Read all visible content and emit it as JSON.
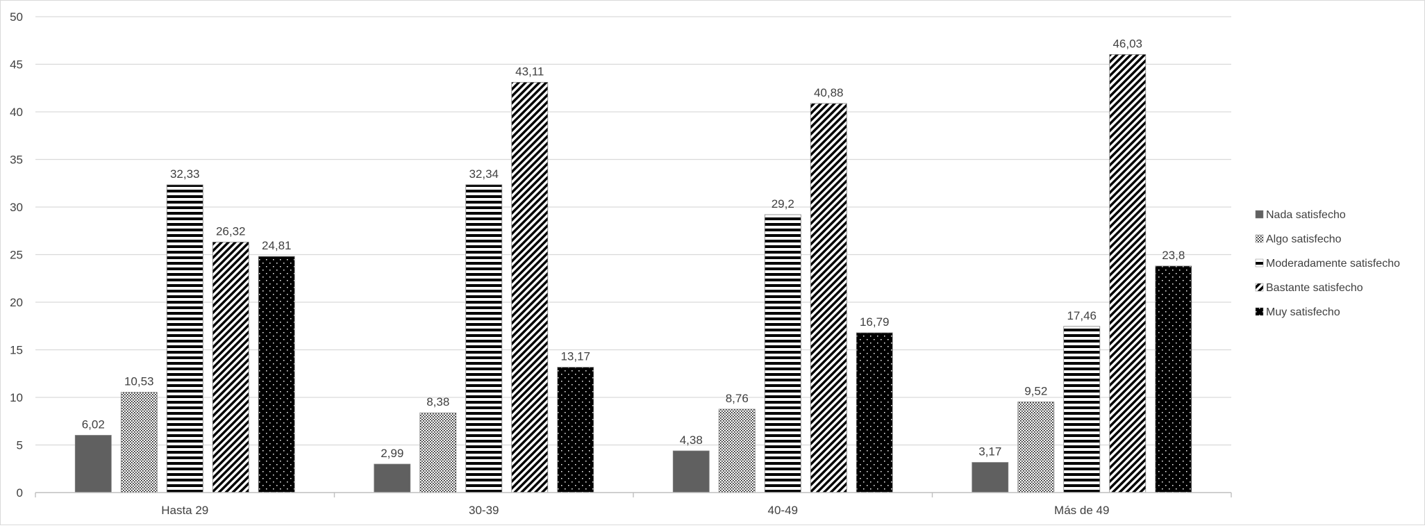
{
  "chart_data": {
    "type": "bar",
    "title": "",
    "xlabel": "",
    "ylabel": "",
    "ylim": [
      0,
      50
    ],
    "yticks": [
      0,
      5,
      10,
      15,
      20,
      25,
      30,
      35,
      40,
      45,
      50
    ],
    "grid": true,
    "legend_position": "right",
    "categories": [
      "Hasta 29",
      "30-39",
      "40-49",
      "Más de 49"
    ],
    "series": [
      {
        "name": "Nada satisfecho",
        "pattern": "solid-gray",
        "values": [
          6.02,
          2.99,
          4.38,
          3.17
        ],
        "labels": [
          "6,02",
          "2,99",
          "4,38",
          "3,17"
        ]
      },
      {
        "name": "Algo satisfecho",
        "pattern": "fine-dots",
        "values": [
          10.53,
          8.38,
          8.76,
          9.52
        ],
        "labels": [
          "10,53",
          "8,38",
          "8,76",
          "9,52"
        ]
      },
      {
        "name": "Moderadamente satisfecho",
        "pattern": "horizontal-stripes",
        "values": [
          32.33,
          32.34,
          29.2,
          17.46
        ],
        "labels": [
          "32,33",
          "32,34",
          "29,2",
          "17,46"
        ]
      },
      {
        "name": "Bastante satisfecho",
        "pattern": "diagonal-stripes",
        "values": [
          26.32,
          43.11,
          40.88,
          46.03
        ],
        "labels": [
          "26,32",
          "43,11",
          "40,88",
          "46,03"
        ]
      },
      {
        "name": "Muy satisfecho",
        "pattern": "black-with-white-dots",
        "values": [
          24.81,
          13.17,
          16.79,
          23.8
        ],
        "labels": [
          "24,81",
          "13,17",
          "16,79",
          "23,8"
        ]
      }
    ],
    "colors": {
      "gray": "#606060",
      "black": "#000000",
      "grid": "#d9d9d9",
      "text": "#404040"
    }
  }
}
